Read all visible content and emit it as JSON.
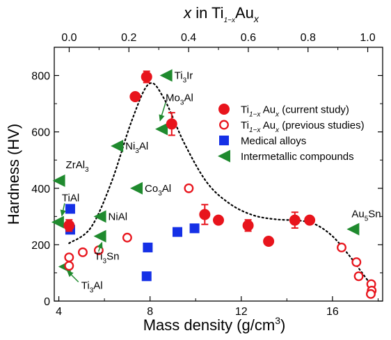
{
  "chart_data": {
    "type": "scatter",
    "xlabel": "Mass density (g/cm³)",
    "ylabel": "Hardness (HV)",
    "top_xlabel": "x in Ti1−xAux",
    "xlim": [
      3.8,
      18.2
    ],
    "ylim": [
      0,
      900
    ],
    "top_xlim": [
      -0.05,
      1.05
    ],
    "x_ticks": [
      4,
      8,
      12,
      16
    ],
    "y_ticks": [
      0,
      200,
      400,
      600,
      800
    ],
    "top_ticks": [
      0.0,
      0.2,
      0.4,
      0.6,
      0.8,
      1.0
    ],
    "x_tick_labels": [
      "4",
      "8",
      "12",
      "16"
    ],
    "y_tick_labels": [
      "0",
      "200",
      "400",
      "600",
      "800"
    ],
    "top_tick_labels": [
      "0.0",
      "0.2",
      "0.4",
      "0.6",
      "0.8",
      "1.0"
    ],
    "grid": false,
    "legend_position": "right",
    "series": [
      {
        "name": "Ti1−xAux (current study)",
        "marker": "filled-circle",
        "color": "#e8141c",
        "points": [
          {
            "x": 4.45,
            "y": 268,
            "err": 20
          },
          {
            "x": 7.35,
            "y": 725,
            "err": 0
          },
          {
            "x": 7.85,
            "y": 795,
            "err": 20
          },
          {
            "x": 8.95,
            "y": 628,
            "err": 40
          },
          {
            "x": 10.4,
            "y": 307,
            "err": 35
          },
          {
            "x": 11.0,
            "y": 287,
            "err": 0
          },
          {
            "x": 12.3,
            "y": 268,
            "err": 20
          },
          {
            "x": 13.2,
            "y": 212,
            "err": 0
          },
          {
            "x": 14.35,
            "y": 287,
            "err": 28
          },
          {
            "x": 15.0,
            "y": 287,
            "err": 0
          }
        ]
      },
      {
        "name": "Ti1−xAux (previous studies)",
        "marker": "open-circle",
        "color": "#e8141c",
        "points": [
          {
            "x": 4.45,
            "y": 125
          },
          {
            "x": 4.45,
            "y": 155
          },
          {
            "x": 5.05,
            "y": 173
          },
          {
            "x": 5.75,
            "y": 180
          },
          {
            "x": 7.0,
            "y": 225
          },
          {
            "x": 9.7,
            "y": 400
          },
          {
            "x": 16.4,
            "y": 190
          },
          {
            "x": 17.05,
            "y": 138
          },
          {
            "x": 17.15,
            "y": 88
          },
          {
            "x": 17.7,
            "y": 60
          },
          {
            "x": 17.72,
            "y": 37
          },
          {
            "x": 17.68,
            "y": 25
          }
        ]
      },
      {
        "name": "Medical alloys",
        "marker": "square",
        "color": "#1530e6",
        "points": [
          {
            "x": 4.5,
            "y": 327
          },
          {
            "x": 4.5,
            "y": 253
          },
          {
            "x": 7.9,
            "y": 190
          },
          {
            "x": 7.85,
            "y": 88
          },
          {
            "x": 9.2,
            "y": 245
          },
          {
            "x": 9.95,
            "y": 258
          }
        ]
      },
      {
        "name": "Intermetallic compounds",
        "marker": "left-triangle",
        "color": "#1f8a2e",
        "points": [
          {
            "x": 4.0,
            "y": 427,
            "label": "ZrAl3"
          },
          {
            "x": 3.95,
            "y": 280,
            "label": "TiAl"
          },
          {
            "x": 4.25,
            "y": 122,
            "label": "Ti3Al"
          },
          {
            "x": 5.8,
            "y": 300,
            "label": "NiAl"
          },
          {
            "x": 5.8,
            "y": 230,
            "label": "Ti3Sn"
          },
          {
            "x": 6.55,
            "y": 550,
            "label": "Ni3Al"
          },
          {
            "x": 7.4,
            "y": 400,
            "label": "Co3Al"
          },
          {
            "x": 8.5,
            "y": 610,
            "label": "Mo3Al"
          },
          {
            "x": 8.7,
            "y": 800,
            "label": "Ti3Ir"
          },
          {
            "x": 16.9,
            "y": 255,
            "label": "Au5Sn"
          }
        ]
      }
    ],
    "trend_line": [
      [
        4.45,
        205
      ],
      [
        5.4,
        260
      ],
      [
        6.3,
        420
      ],
      [
        7.2,
        640
      ],
      [
        7.95,
        770
      ],
      [
        8.6,
        720
      ],
      [
        9.5,
        560
      ],
      [
        10.5,
        420
      ],
      [
        11.5,
        345
      ],
      [
        12.5,
        305
      ],
      [
        13.5,
        290
      ],
      [
        14.6,
        285
      ],
      [
        15.3,
        270
      ],
      [
        16.0,
        230
      ],
      [
        16.7,
        165
      ],
      [
        17.3,
        100
      ],
      [
        17.85,
        40
      ]
    ]
  },
  "labels": {
    "top_axis_title": {
      "prefix": "x",
      "middle": " in Ti",
      "sub1": "1−x",
      "mid2": "Au",
      "sub2": "x"
    },
    "y_axis_title": "Hardness (HV)",
    "x_axis_title": {
      "main": "Mass density (g/cm",
      "sup": "3",
      "end": ")"
    },
    "legend": [
      {
        "base": "Ti",
        "sub1": "1−x",
        "mid": " Au",
        "sub2": "x",
        "rest": " (current study)"
      },
      {
        "base": "Ti",
        "sub1": "1−x",
        "mid": " Au",
        "sub2": "x",
        "rest": " (previous studies)"
      },
      {
        "plain": "Medical alloys"
      },
      {
        "plain": "Intermetallic compounds"
      }
    ],
    "annotations": {
      "ZrAl3": {
        "a": "ZrAl",
        "s": "3"
      },
      "TiAl": {
        "a": "TiAl",
        "s": ""
      },
      "Ti3Al": {
        "a": "Ti",
        "s": "3",
        "b": "Al"
      },
      "NiAl": {
        "a": "NiAl",
        "s": ""
      },
      "Ti3Sn": {
        "a": "Ti",
        "s": "3",
        "b": "Sn"
      },
      "Ni3Al": {
        "a": "Ni",
        "s": "3",
        "b": "Al"
      },
      "Co3Al": {
        "a": "Co",
        "s": "3",
        "b": "Al"
      },
      "Mo3Al": {
        "a": "Mo",
        "s": "3",
        "b": "Al"
      },
      "Ti3Ir": {
        "a": "Ti",
        "s": "3",
        "b": "Ir"
      },
      "Au5Sn": {
        "a": "Au",
        "s": "5",
        "b": "Sn"
      }
    }
  }
}
